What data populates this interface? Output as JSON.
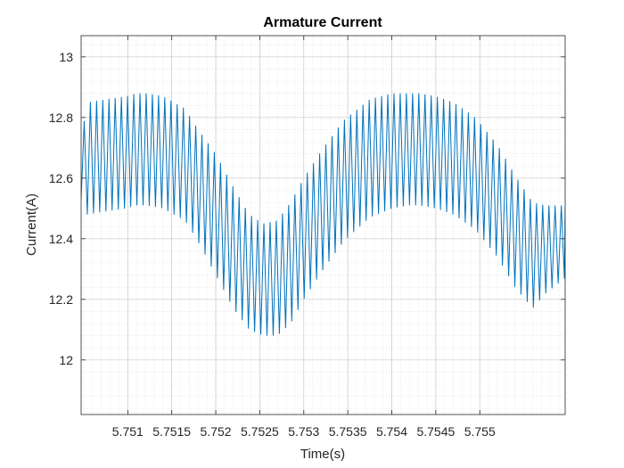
{
  "chart_data": {
    "type": "line",
    "title": "Armature Current",
    "xlabel": "Time(s)",
    "ylabel": "Current(A)",
    "xlim": [
      5.75047,
      5.75597
    ],
    "ylim": [
      11.82,
      13.07
    ],
    "xticks": [
      5.751,
      5.7515,
      5.752,
      5.7525,
      5.753,
      5.7535,
      5.754,
      5.7545,
      5.755
    ],
    "xtick_labels": [
      "5.751",
      "5.7515",
      "5.752",
      "5.7525",
      "5.753",
      "5.7535",
      "5.754",
      "5.7545",
      "5.755"
    ],
    "yticks": [
      12,
      12.2,
      12.4,
      12.6,
      12.8,
      13
    ],
    "ytick_labels": [
      "12",
      "12.2",
      "12.4",
      "12.6",
      "12.8",
      "13"
    ],
    "grid": true,
    "minor_grid": true,
    "series": [
      {
        "color": "#0072BD",
        "ripple_period": 7.04e-05,
        "x": [
          5.75047,
          5.75053,
          5.75098,
          5.7511,
          5.75122,
          5.7514,
          5.75165,
          5.7518,
          5.752,
          5.7522,
          5.75238,
          5.75254,
          5.7527,
          5.75285,
          5.753,
          5.7532,
          5.75345,
          5.75375,
          5.754,
          5.7542,
          5.75432,
          5.7545,
          5.7547,
          5.75495,
          5.7552,
          5.7554,
          5.7556,
          5.75575,
          5.75597
        ],
        "upper": [
          12.7,
          12.85,
          12.87,
          12.88,
          12.88,
          12.87,
          12.83,
          12.76,
          12.68,
          12.57,
          12.48,
          12.45,
          12.46,
          12.52,
          12.6,
          12.69,
          12.79,
          12.86,
          12.88,
          12.88,
          12.88,
          12.87,
          12.85,
          12.8,
          12.71,
          12.61,
          12.52,
          12.51,
          12.51
        ],
        "lower": [
          12.53,
          12.48,
          12.5,
          12.51,
          12.51,
          12.5,
          12.46,
          12.39,
          12.28,
          12.17,
          12.1,
          12.08,
          12.08,
          12.12,
          12.2,
          12.29,
          12.39,
          12.47,
          12.5,
          12.51,
          12.51,
          12.5,
          12.48,
          12.43,
          12.34,
          12.24,
          12.17,
          12.22,
          12.27
        ]
      }
    ]
  }
}
